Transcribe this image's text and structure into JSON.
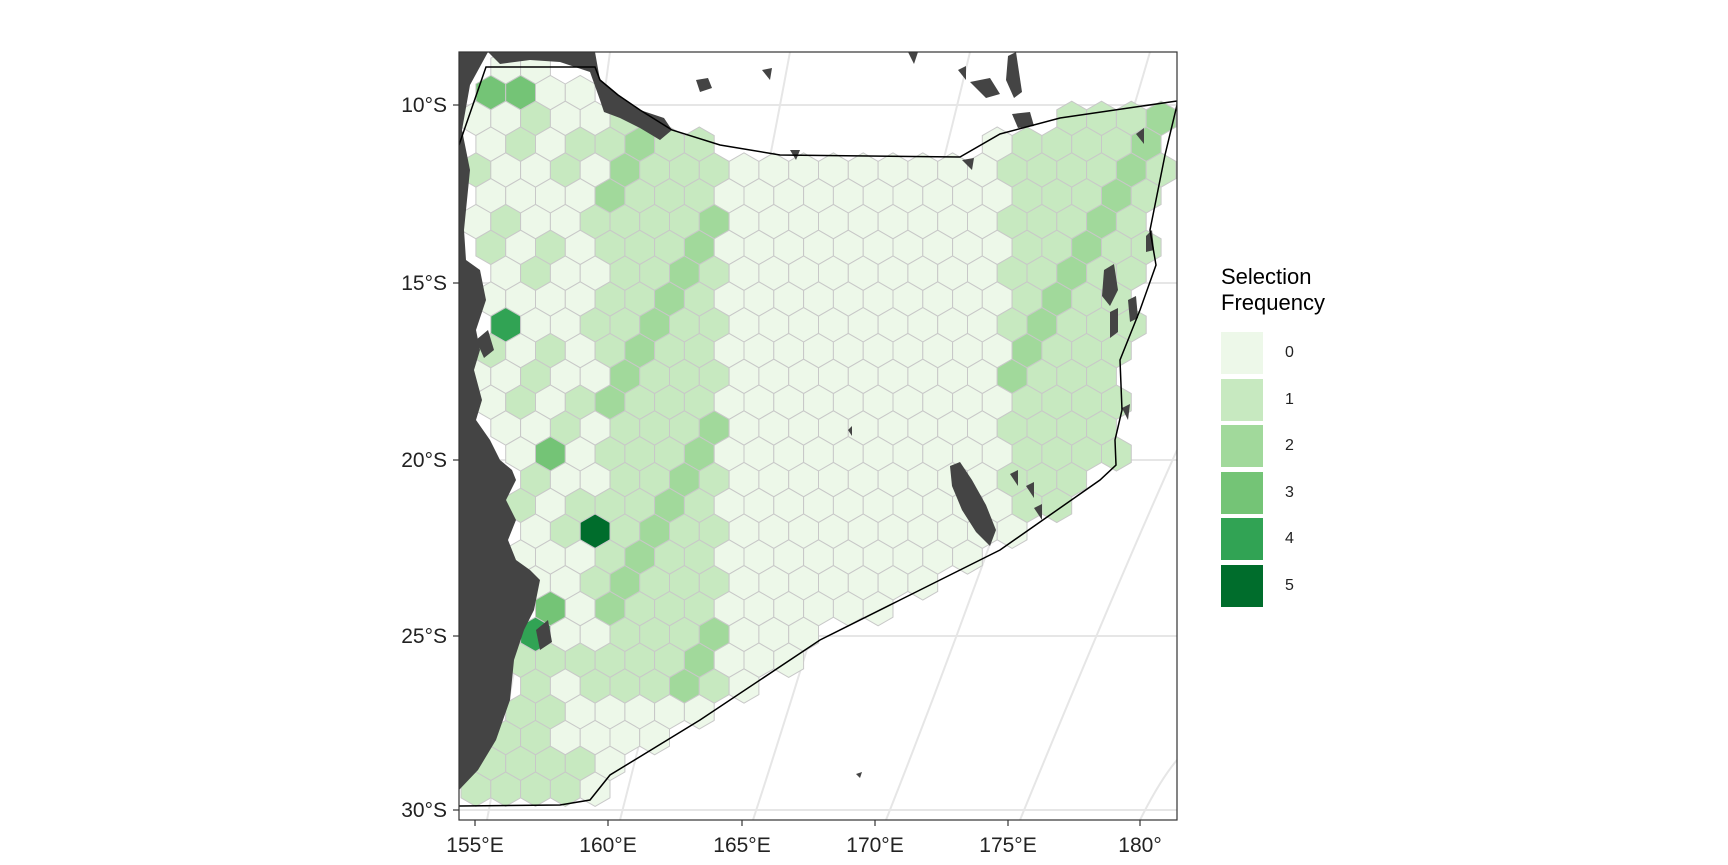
{
  "legend": {
    "title_line1": "Selection",
    "title_line2": "Frequency",
    "items": [
      {
        "label": "0",
        "color": "#edf8e9"
      },
      {
        "label": "1",
        "color": "#c7e9c0"
      },
      {
        "label": "2",
        "color": "#a1d99b"
      },
      {
        "label": "3",
        "color": "#74c476"
      },
      {
        "label": "4",
        "color": "#31a354"
      },
      {
        "label": "5",
        "color": "#006d2c"
      }
    ]
  },
  "axes": {
    "y_ticks": [
      "10°S",
      "15°S",
      "20°S",
      "25°S",
      "30°S"
    ],
    "x_ticks": [
      "155°E",
      "160°E",
      "165°E",
      "170°E",
      "175°E",
      "180°"
    ]
  },
  "colors": {
    "land": "#444444",
    "boundary": "#000000",
    "grid": "#e6e6e6",
    "hex_edge": "#c8c8c8"
  },
  "chart_data": {
    "type": "heatmap",
    "description_values": "hexagonal planning units coloured by selection frequency (0-5)",
    "x_range": [
      "155°E",
      "180°"
    ],
    "y_range": [
      "30°S",
      "10°S"
    ],
    "frequency_levels": [
      0,
      1,
      2,
      3,
      4,
      5
    ],
    "highlighted_units": [
      {
        "lat": -9.8,
        "lon": 155.8,
        "frequency": 3
      },
      {
        "lat": -9.8,
        "lon": 157.0,
        "frequency": 3
      },
      {
        "lat": -16.4,
        "lon": 155.7,
        "frequency": 4
      },
      {
        "lat": -19.6,
        "lon": 157.6,
        "frequency": 3
      },
      {
        "lat": -22.0,
        "lon": 159.6,
        "frequency": 5
      },
      {
        "lat": -24.3,
        "lon": 157.8,
        "frequency": 3
      },
      {
        "lat": -25.1,
        "lon": 157.4,
        "frequency": 4
      }
    ]
  }
}
